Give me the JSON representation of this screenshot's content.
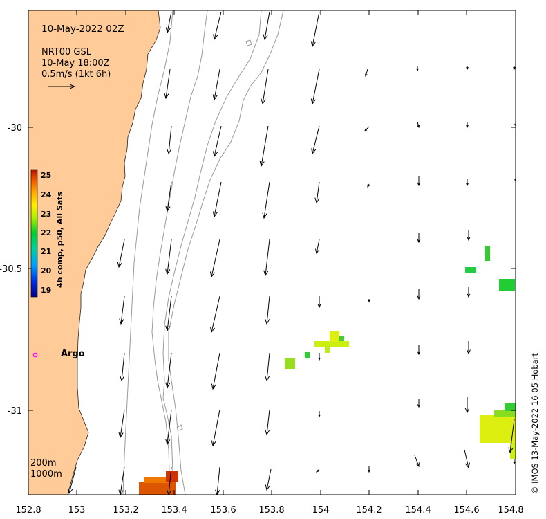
{
  "map": {
    "title_date": "10-May-2022 02Z",
    "product": "NRT00 GSL",
    "valid_time": "10-May 18:00Z",
    "scale_label": "0.5m/s (1kt 6h)",
    "copyright": "© IMOS 13-May-2022 16:05 Hobart",
    "argo_label": "Argo",
    "contour_labels": [
      "200m",
      "1000m"
    ],
    "lon_ticks": [
      "152.8",
      "153",
      "153.2",
      "153.4",
      "153.6",
      "153.8",
      "154",
      "154.2",
      "154.4",
      "154.6",
      "154.8"
    ],
    "lat_ticks": [
      "-30",
      "-30.5",
      "-31"
    ],
    "colorbar": {
      "title": "4h comp, p50, All Sats",
      "tick_labels": [
        "25",
        "24",
        "23",
        "22",
        "21",
        "20",
        "19"
      ],
      "range": [
        19,
        25
      ]
    },
    "colors": {
      "land": "#ffcc99",
      "contour": "#9a9a9a",
      "argo_marker": "#ff00ff"
    }
  }
}
